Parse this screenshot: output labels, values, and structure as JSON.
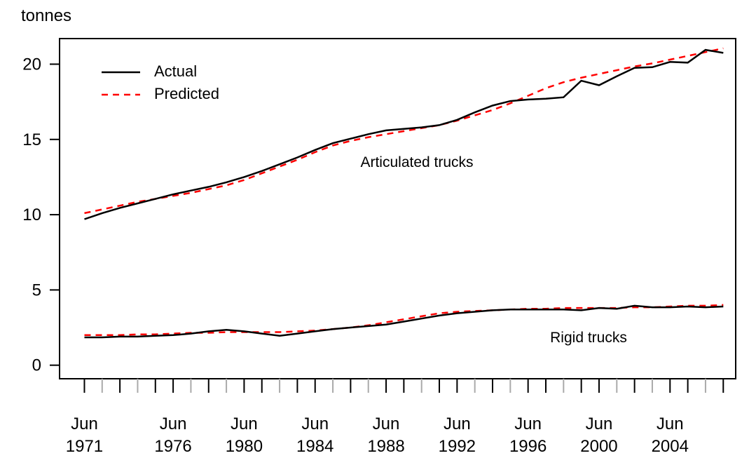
{
  "chart_data": {
    "type": "line",
    "y_label": "tonnes",
    "x": [
      1971,
      1972,
      1973,
      1974,
      1975,
      1976,
      1977,
      1978,
      1979,
      1980,
      1981,
      1982,
      1983,
      1984,
      1985,
      1986,
      1987,
      1988,
      1989,
      1990,
      1991,
      1992,
      1993,
      1994,
      1995,
      1996,
      1997,
      1998,
      1999,
      2000,
      2001,
      2002,
      2003,
      2004,
      2005,
      2006,
      2007
    ],
    "xlim": [
      1969.6,
      2007.7
    ],
    "ylim": [
      -0.9,
      21.7
    ],
    "yticks": [
      0,
      5,
      10,
      15,
      20
    ],
    "xticks": [
      {
        "value": 1971,
        "label": "Jun 1971"
      },
      {
        "value": 1976,
        "label": "Jun 1976"
      },
      {
        "value": 1980,
        "label": "Jun 1980"
      },
      {
        "value": 1984,
        "label": "Jun 1984"
      },
      {
        "value": 1988,
        "label": "Jun 1988"
      },
      {
        "value": 1992,
        "label": "Jun 1992"
      },
      {
        "value": 1996,
        "label": "Jun 1996"
      },
      {
        "value": 2000,
        "label": "Jun 2000"
      },
      {
        "value": 2004,
        "label": "Jun 2004"
      }
    ],
    "minor_xticks": [
      1972,
      1973,
      1974,
      1975,
      1977,
      1978,
      1979,
      1981,
      1982,
      1983,
      1985,
      1986,
      1987,
      1989,
      1990,
      1991,
      1993,
      1994,
      1995,
      1997,
      1998,
      1999,
      2001,
      2002,
      2003,
      2005,
      2006,
      2007
    ],
    "legend": [
      {
        "name": "Actual",
        "color": "#000000",
        "dashed": false
      },
      {
        "name": "Predicted",
        "color": "#ff0000",
        "dashed": true
      }
    ],
    "groups": [
      {
        "label": "Articulated trucks",
        "actual": [
          9.7,
          10.1,
          10.45,
          10.75,
          11.05,
          11.35,
          11.6,
          11.85,
          12.15,
          12.5,
          12.9,
          13.35,
          13.8,
          14.3,
          14.75,
          15.05,
          15.35,
          15.6,
          15.7,
          15.8,
          15.95,
          16.3,
          16.8,
          17.25,
          17.55,
          17.65,
          17.7,
          17.8,
          18.9,
          18.6,
          19.2,
          19.75,
          19.8,
          20.15,
          20.1,
          20.95,
          20.75
        ],
        "predicted": [
          10.1,
          10.35,
          10.6,
          10.85,
          11.05,
          11.25,
          11.45,
          11.7,
          11.95,
          12.3,
          12.75,
          13.2,
          13.65,
          14.15,
          14.6,
          14.9,
          15.15,
          15.35,
          15.55,
          15.75,
          15.95,
          16.25,
          16.6,
          16.95,
          17.4,
          17.9,
          18.4,
          18.8,
          19.1,
          19.35,
          19.6,
          19.85,
          20.05,
          20.3,
          20.55,
          20.8,
          21.05
        ]
      },
      {
        "label": "Rigid trucks",
        "actual": [
          1.85,
          1.85,
          1.9,
          1.9,
          1.95,
          2.0,
          2.1,
          2.25,
          2.35,
          2.25,
          2.1,
          1.95,
          2.1,
          2.25,
          2.4,
          2.5,
          2.6,
          2.7,
          2.9,
          3.1,
          3.3,
          3.45,
          3.55,
          3.65,
          3.7,
          3.7,
          3.7,
          3.7,
          3.65,
          3.8,
          3.75,
          3.95,
          3.85,
          3.85,
          3.9,
          3.85,
          3.9
        ],
        "predicted": [
          2.0,
          2.0,
          2.0,
          2.05,
          2.05,
          2.1,
          2.15,
          2.15,
          2.2,
          2.2,
          2.2,
          2.2,
          2.25,
          2.3,
          2.4,
          2.5,
          2.65,
          2.85,
          3.05,
          3.25,
          3.45,
          3.55,
          3.6,
          3.65,
          3.7,
          3.75,
          3.75,
          3.8,
          3.8,
          3.8,
          3.8,
          3.85,
          3.85,
          3.9,
          3.95,
          3.95,
          4.0
        ]
      }
    ]
  }
}
